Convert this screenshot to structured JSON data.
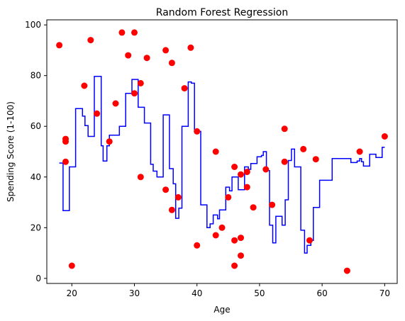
{
  "chart_data": {
    "type": "scatter",
    "title": "Random Forest Regression",
    "xlabel": "Age",
    "ylabel": "Spending Score (1-100)",
    "xlim": [
      16,
      72
    ],
    "ylim": [
      -2,
      102
    ],
    "xticks": [
      20,
      30,
      40,
      50,
      60,
      70
    ],
    "yticks": [
      0,
      20,
      40,
      60,
      80,
      100
    ],
    "grid": false,
    "colors": {
      "scatter": "#ff0000",
      "line": "#0000ff",
      "axis": "#000000"
    },
    "series": [
      {
        "kind": "scatter",
        "points": [
          [
            18,
            92
          ],
          [
            19,
            55
          ],
          [
            19,
            54
          ],
          [
            19,
            46
          ],
          [
            20,
            5
          ],
          [
            22,
            76
          ],
          [
            23,
            94
          ],
          [
            24,
            65
          ],
          [
            26,
            54
          ],
          [
            27,
            69
          ],
          [
            28,
            97
          ],
          [
            29,
            88
          ],
          [
            30,
            97
          ],
          [
            30,
            73
          ],
          [
            31,
            77
          ],
          [
            31,
            40
          ],
          [
            32,
            87
          ],
          [
            35,
            90
          ],
          [
            35,
            35
          ],
          [
            36,
            85
          ],
          [
            36,
            27
          ],
          [
            37,
            32
          ],
          [
            38,
            75
          ],
          [
            39,
            91
          ],
          [
            40,
            58
          ],
          [
            40,
            13
          ],
          [
            43,
            50
          ],
          [
            43,
            17
          ],
          [
            44,
            20
          ],
          [
            45,
            32
          ],
          [
            46,
            44
          ],
          [
            46,
            15
          ],
          [
            46,
            5
          ],
          [
            47,
            41
          ],
          [
            47,
            16
          ],
          [
            47,
            9
          ],
          [
            48,
            42
          ],
          [
            48,
            36
          ],
          [
            49,
            28
          ],
          [
            51,
            43
          ],
          [
            52,
            29
          ],
          [
            54,
            59
          ],
          [
            54,
            46
          ],
          [
            57,
            51
          ],
          [
            58,
            15
          ],
          [
            59,
            47
          ],
          [
            64,
            3
          ],
          [
            66,
            50
          ],
          [
            70,
            56
          ]
        ]
      },
      {
        "kind": "step-line",
        "points": [
          [
            18.0,
            45.5
          ],
          [
            18.6,
            45.5
          ],
          [
            18.6,
            26.7
          ],
          [
            19.6,
            26.7
          ],
          [
            19.6,
            44.0
          ],
          [
            20.6,
            44.0
          ],
          [
            20.6,
            67.0
          ],
          [
            21.7,
            67.0
          ],
          [
            21.7,
            64.0
          ],
          [
            22.1,
            64.0
          ],
          [
            22.1,
            60.3
          ],
          [
            22.6,
            60.3
          ],
          [
            22.6,
            56.0
          ],
          [
            23.6,
            56.0
          ],
          [
            23.6,
            79.7
          ],
          [
            24.7,
            79.7
          ],
          [
            24.7,
            52.3
          ],
          [
            25.0,
            52.3
          ],
          [
            25.0,
            46.3
          ],
          [
            25.6,
            46.3
          ],
          [
            25.6,
            52.3
          ],
          [
            26.0,
            52.3
          ],
          [
            26.0,
            56.5
          ],
          [
            27.6,
            56.5
          ],
          [
            27.6,
            60.0
          ],
          [
            28.6,
            60.0
          ],
          [
            28.6,
            73.0
          ],
          [
            29.6,
            73.0
          ],
          [
            29.6,
            78.5
          ],
          [
            30.6,
            78.5
          ],
          [
            30.6,
            67.5
          ],
          [
            31.6,
            67.5
          ],
          [
            31.6,
            61.3
          ],
          [
            32.6,
            61.3
          ],
          [
            32.6,
            45.0
          ],
          [
            33.0,
            45.0
          ],
          [
            33.0,
            42.3
          ],
          [
            33.6,
            42.3
          ],
          [
            33.6,
            40.0
          ],
          [
            34.6,
            40.0
          ],
          [
            34.6,
            64.5
          ],
          [
            35.6,
            64.5
          ],
          [
            35.6,
            43.3
          ],
          [
            36.2,
            43.3
          ],
          [
            36.2,
            37.3
          ],
          [
            36.6,
            37.3
          ],
          [
            36.6,
            23.7
          ],
          [
            37.1,
            23.7
          ],
          [
            37.1,
            27.7
          ],
          [
            37.6,
            27.7
          ],
          [
            37.6,
            60.0
          ],
          [
            38.6,
            60.0
          ],
          [
            38.6,
            77.5
          ],
          [
            39.1,
            77.5
          ],
          [
            39.1,
            77.0
          ],
          [
            39.6,
            77.0
          ],
          [
            39.6,
            58.0
          ],
          [
            40.6,
            58.0
          ],
          [
            40.6,
            29.0
          ],
          [
            41.6,
            29.0
          ],
          [
            41.6,
            20.0
          ],
          [
            42.1,
            20.0
          ],
          [
            42.1,
            21.5
          ],
          [
            42.6,
            21.5
          ],
          [
            42.6,
            25.0
          ],
          [
            43.3,
            25.0
          ],
          [
            43.3,
            23.5
          ],
          [
            43.6,
            23.5
          ],
          [
            43.6,
            27.0
          ],
          [
            44.6,
            27.0
          ],
          [
            44.6,
            36.0
          ],
          [
            45.2,
            36.0
          ],
          [
            45.2,
            34.5
          ],
          [
            45.6,
            34.5
          ],
          [
            45.6,
            40.0
          ],
          [
            46.6,
            40.0
          ],
          [
            46.6,
            35.0
          ],
          [
            47.6,
            35.0
          ],
          [
            47.6,
            44.0
          ],
          [
            48.2,
            44.0
          ],
          [
            48.2,
            43.0
          ],
          [
            48.6,
            43.0
          ],
          [
            48.6,
            45.3
          ],
          [
            49.6,
            45.3
          ],
          [
            49.6,
            48.0
          ],
          [
            50.3,
            48.0
          ],
          [
            50.3,
            48.5
          ],
          [
            50.6,
            48.5
          ],
          [
            50.6,
            50.0
          ],
          [
            51.1,
            50.0
          ],
          [
            51.1,
            42.5
          ],
          [
            51.6,
            42.5
          ],
          [
            51.6,
            21.0
          ],
          [
            52.1,
            21.0
          ],
          [
            52.1,
            14.0
          ],
          [
            52.6,
            14.0
          ],
          [
            52.6,
            24.5
          ],
          [
            53.6,
            24.5
          ],
          [
            53.6,
            21.0
          ],
          [
            54.1,
            21.0
          ],
          [
            54.1,
            31.0
          ],
          [
            54.6,
            31.0
          ],
          [
            54.6,
            46.5
          ],
          [
            55.1,
            46.5
          ],
          [
            55.1,
            51.0
          ],
          [
            55.6,
            51.0
          ],
          [
            55.6,
            44.0
          ],
          [
            56.6,
            44.0
          ],
          [
            56.6,
            19.0
          ],
          [
            57.2,
            19.0
          ],
          [
            57.2,
            10.0
          ],
          [
            57.6,
            10.0
          ],
          [
            57.6,
            13.0
          ],
          [
            58.2,
            13.0
          ],
          [
            58.2,
            15.0
          ],
          [
            58.6,
            15.0
          ],
          [
            58.6,
            28.0
          ],
          [
            59.6,
            28.0
          ],
          [
            59.6,
            38.7
          ],
          [
            61.6,
            38.7
          ],
          [
            61.6,
            47.3
          ],
          [
            64.6,
            47.3
          ],
          [
            64.6,
            45.7
          ],
          [
            65.6,
            45.7
          ],
          [
            65.6,
            46.3
          ],
          [
            66.0,
            46.3
          ],
          [
            66.0,
            47.3
          ],
          [
            66.3,
            47.3
          ],
          [
            66.3,
            46.0
          ],
          [
            66.6,
            46.0
          ],
          [
            66.6,
            44.3
          ],
          [
            67.6,
            44.3
          ],
          [
            67.6,
            49.0
          ],
          [
            68.6,
            49.0
          ],
          [
            68.6,
            47.7
          ],
          [
            69.6,
            47.7
          ],
          [
            69.6,
            51.7
          ],
          [
            70.0,
            51.7
          ]
        ]
      }
    ]
  }
}
